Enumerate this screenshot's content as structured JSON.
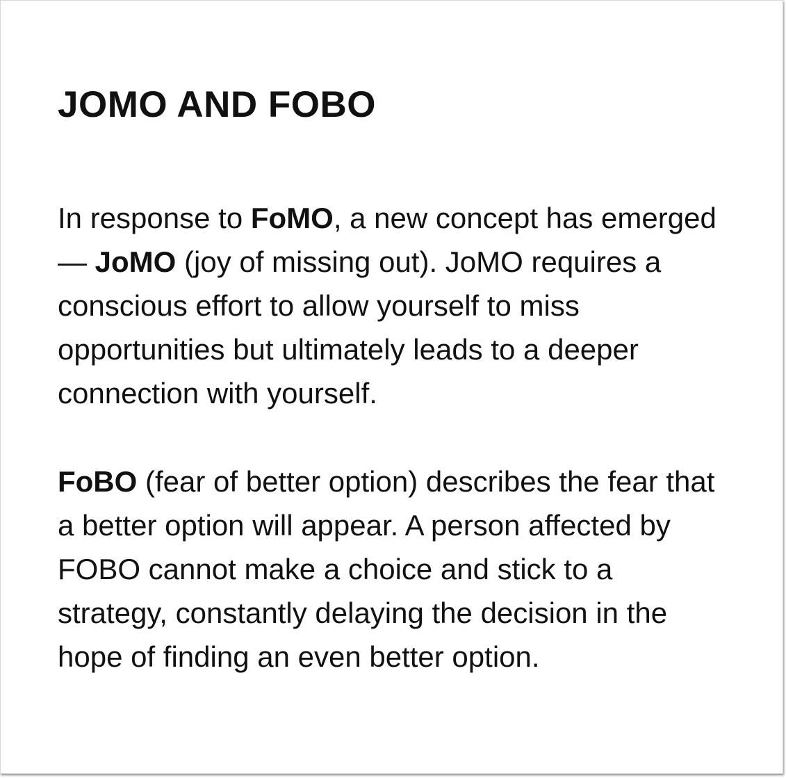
{
  "title": "JOMO AND FOBO",
  "paragraph1": {
    "t1": "In response to ",
    "b1": "FoMO",
    "t2": ", a new concept has emerged — ",
    "b2": "JoMO",
    "t3": " (joy of missing out). JoMO requires a conscious effort to allow yourself to miss opportunities but ultimately leads to a deeper connection with yourself."
  },
  "paragraph2": {
    "b1": "FoBO",
    "t1": " (fear of better option) describes the fear that a better option will appear. A person affected by FOBO cannot make a choice and stick to a strategy, constantly delaying the decision in the hope of finding an even better option."
  }
}
